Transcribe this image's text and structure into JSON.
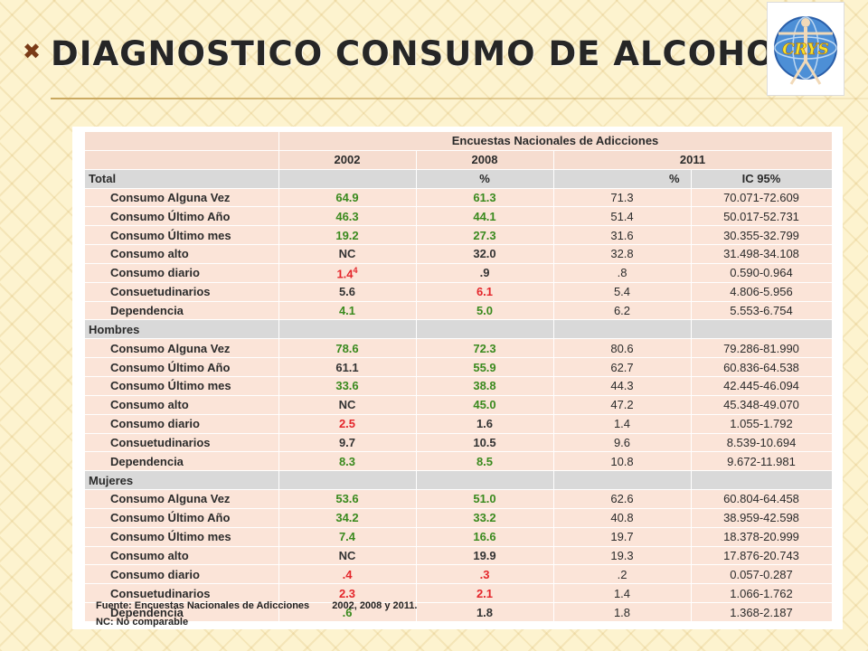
{
  "slide": {
    "bullet_glyph": "✖",
    "title": "DIAGNOSTICO CONSUMO DE ALCOHOL",
    "logo_text": "CRYS"
  },
  "table": {
    "header_main": "Encuestas Nacionales de Adicciones",
    "years": [
      "2002",
      "2008",
      "2011"
    ],
    "pct_2008": "%",
    "pct_2011": "%",
    "ic_2011": "IC 95%",
    "sections": [
      {
        "label": "Total",
        "rows": [
          {
            "label": "Consumo Alguna Vez",
            "v2002": "64.9",
            "v2008": "61.3",
            "v2011": "71.3",
            "ic": "70.071-72.609",
            "c2002": "green",
            "c2008": "green"
          },
          {
            "label": "Consumo Último Año",
            "v2002": "46.3",
            "v2008": "44.1",
            "v2011": "51.4",
            "ic": "50.017-52.731",
            "c2002": "green",
            "c2008": "green"
          },
          {
            "label": "Consumo Último mes",
            "v2002": "19.2",
            "v2008": "27.3",
            "v2011": "31.6",
            "ic": "30.355-32.799",
            "c2002": "green",
            "c2008": "green"
          },
          {
            "label": "Consumo alto",
            "v2002": "NC",
            "v2008": "32.0",
            "v2011": "32.8",
            "ic": "31.498-34.108",
            "c2002": "dark",
            "c2008": "dark"
          },
          {
            "label": "Consumo diario",
            "v2002": "1.4",
            "v2002_sup": "4",
            "v2008": ".9",
            "v2011": ".8",
            "ic": "0.590-0.964",
            "c2002": "red",
            "c2008": "dark"
          },
          {
            "label": "Consuetudinarios",
            "v2002": "5.6",
            "v2008": "6.1",
            "v2011": "5.4",
            "ic": "4.806-5.956",
            "c2002": "dark",
            "c2008": "red"
          },
          {
            "label": "Dependencia",
            "v2002": "4.1",
            "v2008": "5.0",
            "v2011": "6.2",
            "ic": "5.553-6.754",
            "c2002": "green",
            "c2008": "green"
          }
        ]
      },
      {
        "label": "Hombres",
        "rows": [
          {
            "label": "Consumo Alguna Vez",
            "v2002": "78.6",
            "v2008": "72.3",
            "v2011": "80.6",
            "ic": "79.286-81.990",
            "c2002": "green",
            "c2008": "green"
          },
          {
            "label": "Consumo Último Año",
            "v2002": "61.1",
            "v2008": "55.9",
            "v2011": "62.7",
            "ic": "60.836-64.538",
            "c2002": "dark",
            "c2008": "green"
          },
          {
            "label": "Consumo Último mes",
            "v2002": "33.6",
            "v2008": "38.8",
            "v2011": "44.3",
            "ic": "42.445-46.094",
            "c2002": "green",
            "c2008": "green"
          },
          {
            "label": "Consumo alto",
            "v2002": "NC",
            "v2008": "45.0",
            "v2011": "47.2",
            "ic": "45.348-49.070",
            "c2002": "dark",
            "c2008": "green"
          },
          {
            "label": "Consumo diario",
            "v2002": "2.5",
            "v2008": "1.6",
            "v2011": "1.4",
            "ic": "1.055-1.792",
            "c2002": "red",
            "c2008": "dark"
          },
          {
            "label": "Consuetudinarios",
            "v2002": "9.7",
            "v2008": "10.5",
            "v2011": "9.6",
            "ic": "8.539-10.694",
            "c2002": "dark",
            "c2008": "dark"
          },
          {
            "label": "Dependencia",
            "v2002": "8.3",
            "v2008": "8.5",
            "v2011": "10.8",
            "ic": "9.672-11.981",
            "c2002": "green",
            "c2008": "green"
          }
        ]
      },
      {
        "label": "Mujeres",
        "rows": [
          {
            "label": "Consumo Alguna Vez",
            "v2002": "53.6",
            "v2008": "51.0",
            "v2011": "62.6",
            "ic": "60.804-64.458",
            "c2002": "green",
            "c2008": "green"
          },
          {
            "label": "Consumo Último Año",
            "v2002": "34.2",
            "v2008": "33.2",
            "v2011": "40.8",
            "ic": "38.959-42.598",
            "c2002": "green",
            "c2008": "green"
          },
          {
            "label": "Consumo Último mes",
            "v2002": "7.4",
            "v2008": "16.6",
            "v2011": "19.7",
            "ic": "18.378-20.999",
            "c2002": "green",
            "c2008": "green"
          },
          {
            "label": "Consumo alto",
            "v2002": "NC",
            "v2008": "19.9",
            "v2011": "19.3",
            "ic": "17.876-20.743",
            "c2002": "dark",
            "c2008": "dark"
          },
          {
            "label": "Consumo diario",
            "v2002": ".4",
            "v2008": ".3",
            "v2011": ".2",
            "ic": "0.057-0.287",
            "c2002": "red",
            "c2008": "red"
          },
          {
            "label": "Consuetudinarios",
            "v2002": "2.3",
            "v2008": "2.1",
            "v2011": "1.4",
            "ic": "1.066-1.762",
            "c2002": "red",
            "c2008": "red"
          },
          {
            "label": "Dependencia",
            "v2002": ".6",
            "v2008": "1.8",
            "v2011": "1.8",
            "ic": "1.368-2.187",
            "c2002": "green",
            "c2008": "dark"
          }
        ]
      }
    ],
    "footer_source": "Fuente: Encuestas Nacionales de Adicciones",
    "footer_years": "2002, 2008 y 2011.",
    "footer_nc": "NC: No comparable"
  },
  "colors": {
    "green": "#3a8a1e",
    "red": "#e4262b",
    "title": "#262626",
    "row_bg": "#fbe4d8",
    "section_bg": "#d9d9d9"
  }
}
